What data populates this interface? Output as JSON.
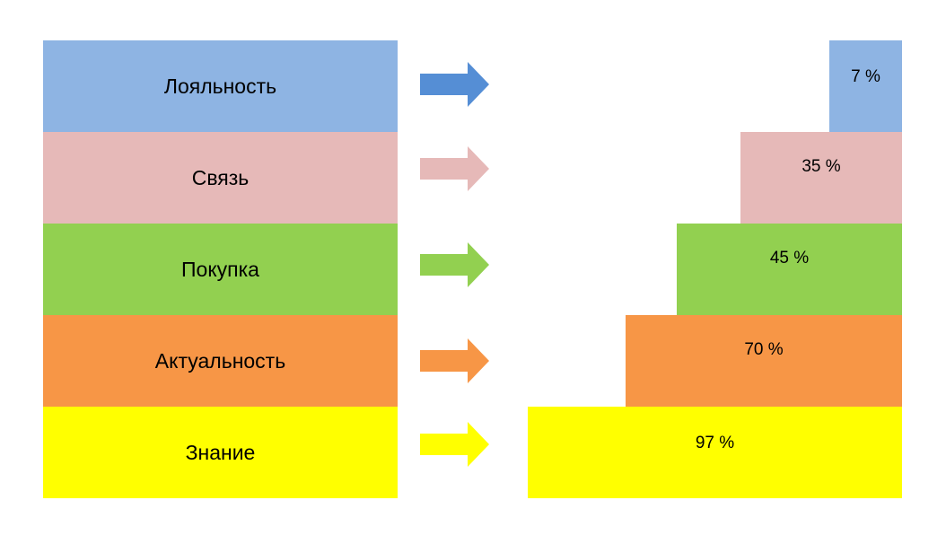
{
  "stages": [
    {
      "label": "Лояльность",
      "percent_label": "7 %",
      "percent": 7,
      "color": "#8EB4E3",
      "arrow_color": "#558ED5"
    },
    {
      "label": "Связь",
      "percent_label": "35 %",
      "percent": 35,
      "color": "#E6B9B8",
      "arrow_color": "#E6B9B8"
    },
    {
      "label": "Покупка",
      "percent_label": "45 %",
      "percent": 45,
      "color": "#92D050",
      "arrow_color": "#92D050"
    },
    {
      "label": "Актуальность",
      "percent_label": "70 %",
      "percent": 70,
      "color": "#F79646",
      "arrow_color": "#F79646"
    },
    {
      "label": "Знание",
      "percent_label": "97 %",
      "percent": 97,
      "color": "#FFFF00",
      "arrow_color": "#FFFF00"
    }
  ]
}
